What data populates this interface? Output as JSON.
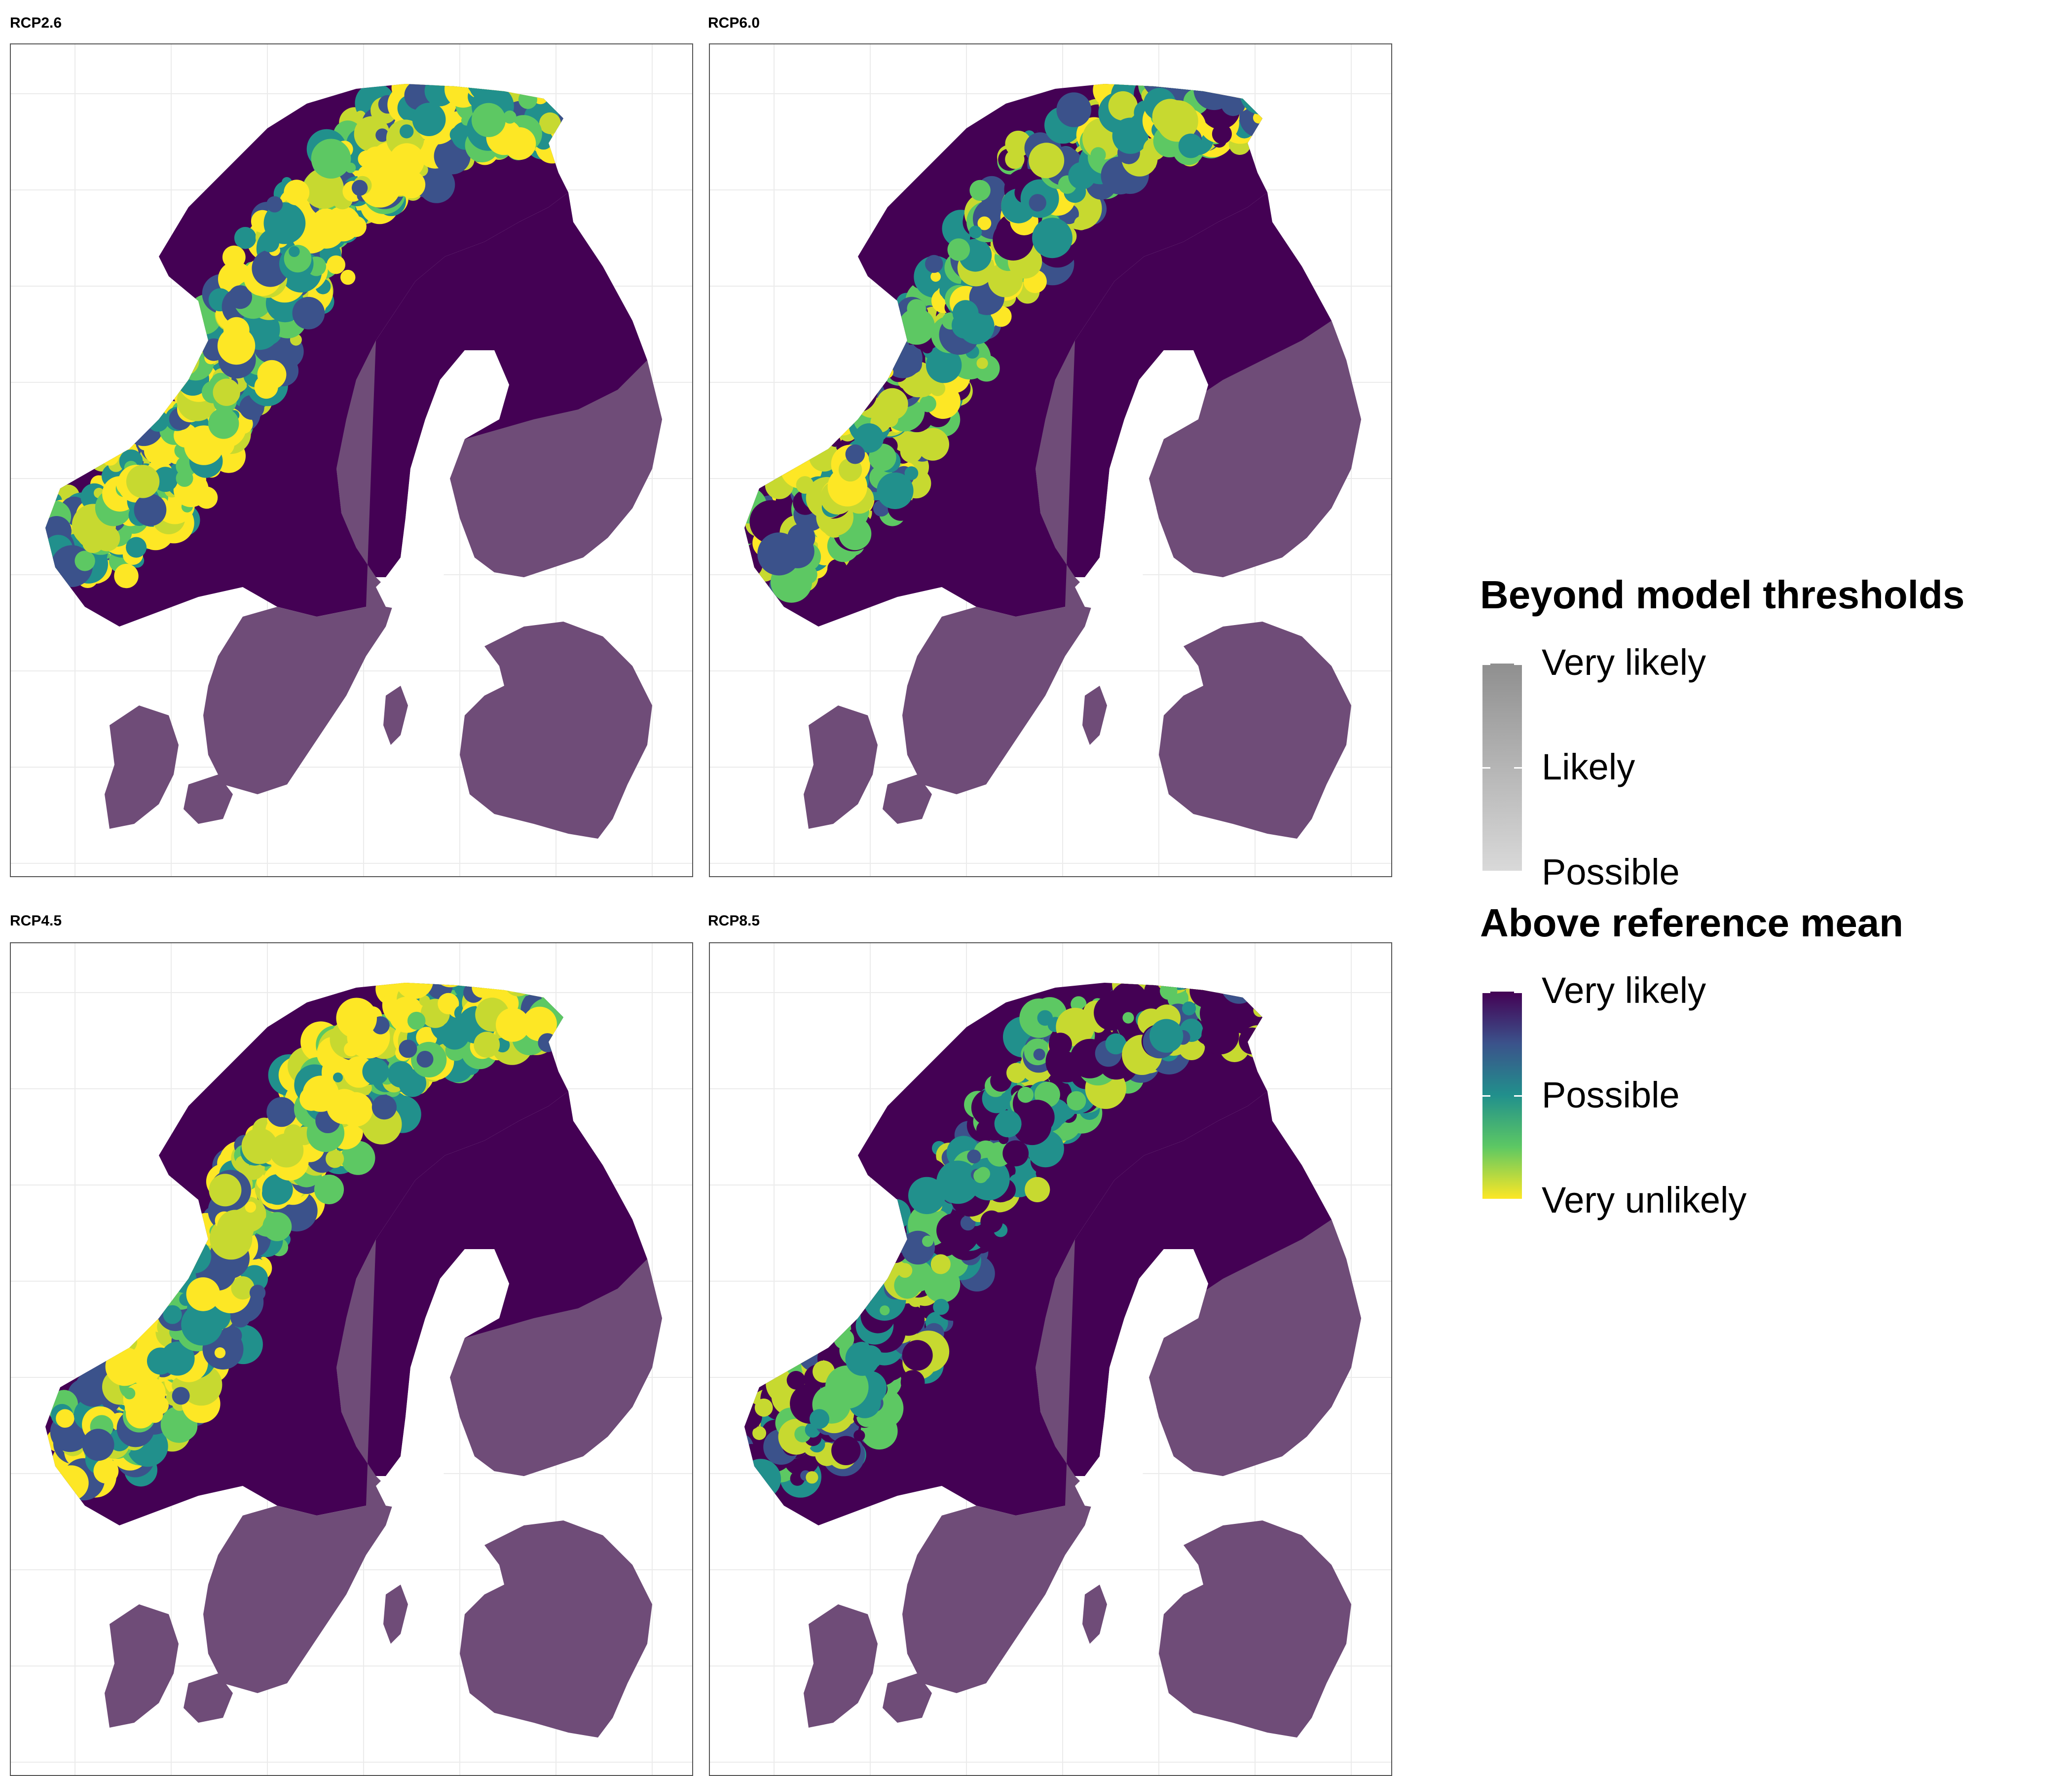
{
  "panels": [
    {
      "label": "RCP2.6"
    },
    {
      "label": "RCP6.0"
    },
    {
      "label": "RCP4.5"
    },
    {
      "label": "RCP8.5"
    }
  ],
  "legend": {
    "thresholds": {
      "title": "Beyond model thresholds",
      "labels": [
        "Very likely",
        "Likely",
        "Possible"
      ]
    },
    "reference": {
      "title": "Above reference mean",
      "labels": [
        "Very likely",
        "Possible",
        "Very unlikely"
      ]
    }
  },
  "colors": {
    "very_likely": "#440154",
    "possible": "#21908c",
    "very_unlikely": "#fde725",
    "beyond_threshold": "#6f4c78",
    "ocean": "#ffffff",
    "grid": "#ebebeb"
  }
}
